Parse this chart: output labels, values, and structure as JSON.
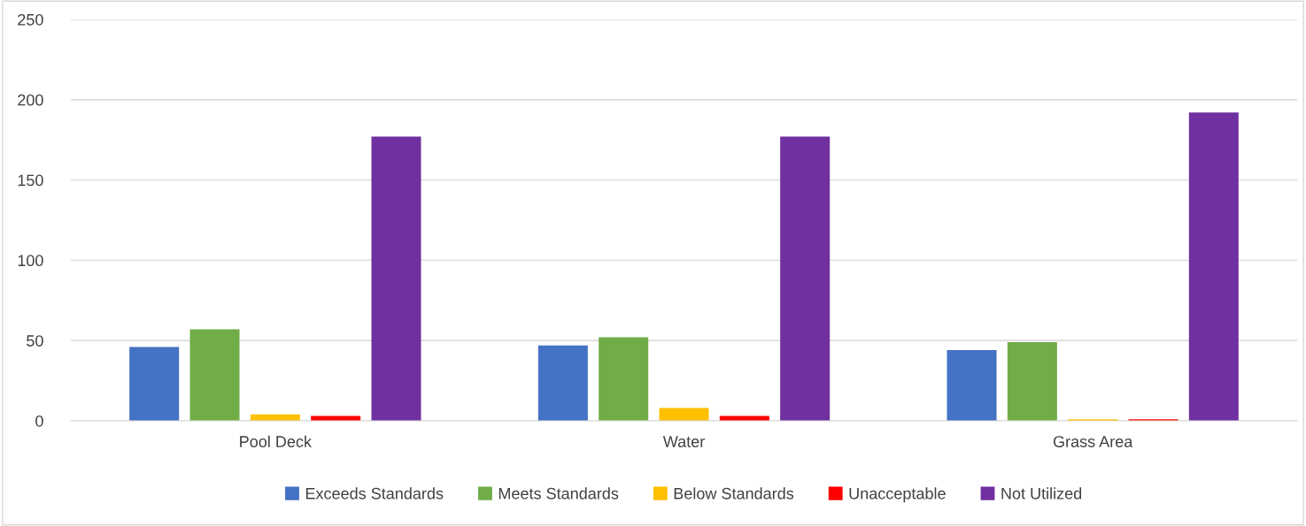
{
  "chart_data": {
    "type": "bar",
    "categories": [
      "Pool Deck",
      "Water",
      "Grass Area"
    ],
    "series": [
      {
        "name": "Exceeds Standards",
        "color": "#4472c4",
        "values": [
          46,
          47,
          44
        ]
      },
      {
        "name": "Meets Standards",
        "color": "#70ad47",
        "values": [
          57,
          52,
          49
        ]
      },
      {
        "name": "Below Standards",
        "color": "#ffc000",
        "values": [
          4,
          8,
          1
        ]
      },
      {
        "name": "Unacceptable",
        "color": "#ff0000",
        "values": [
          3,
          3,
          1
        ]
      },
      {
        "name": "Not Utilized",
        "color": "#7030a0",
        "values": [
          177,
          177,
          192
        ]
      }
    ],
    "ylim": [
      0,
      250
    ],
    "yticks": [
      0,
      50,
      100,
      150,
      200,
      250
    ],
    "grid": "y",
    "legend": "bottom"
  }
}
